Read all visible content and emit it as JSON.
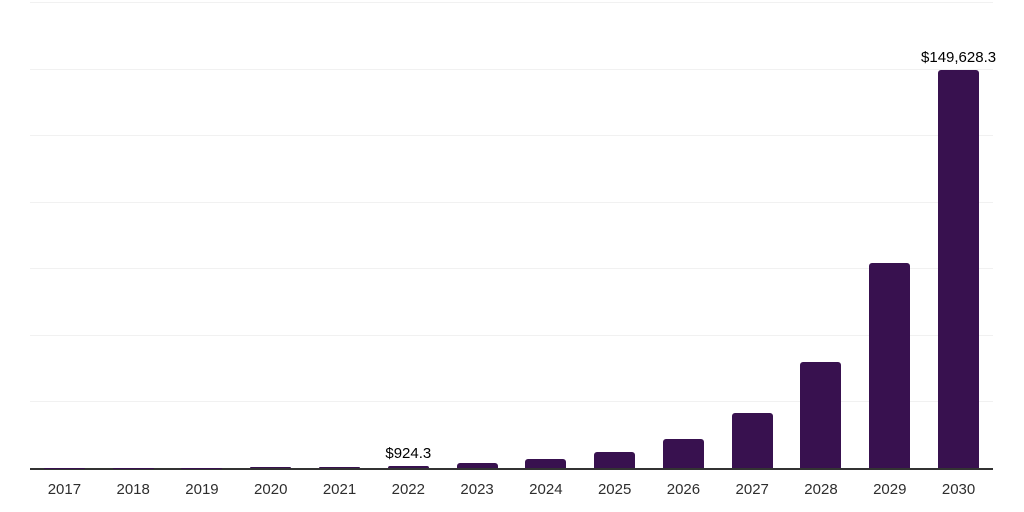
{
  "chart_data": {
    "type": "bar",
    "title": "",
    "xlabel": "",
    "ylabel": "",
    "categories": [
      "2017",
      "2018",
      "2019",
      "2020",
      "2021",
      "2022",
      "2023",
      "2024",
      "2025",
      "2026",
      "2027",
      "2028",
      "2029",
      "2030"
    ],
    "values": [
      40,
      80,
      150,
      280,
      500,
      924.3,
      1750,
      3300,
      6000,
      10800,
      20500,
      40000,
      77000,
      149628.3
    ],
    "bar_labels": [
      "",
      "",
      "",
      "",
      "",
      "$924.3",
      "",
      "",
      "",
      "",
      "",
      "",
      "",
      "$149,628.3"
    ],
    "ylim": [
      0,
      175000
    ],
    "gridline_step": 25000,
    "grid": true,
    "legend_position": "none",
    "y_axis_tick_labels_visible": false,
    "colors": {
      "bar": "#38114f",
      "axis": "#333333",
      "gridline": "#f1f1f1",
      "tick_label": "#2e2e2e",
      "value_label": "#000000",
      "background": "#ffffff"
    }
  }
}
